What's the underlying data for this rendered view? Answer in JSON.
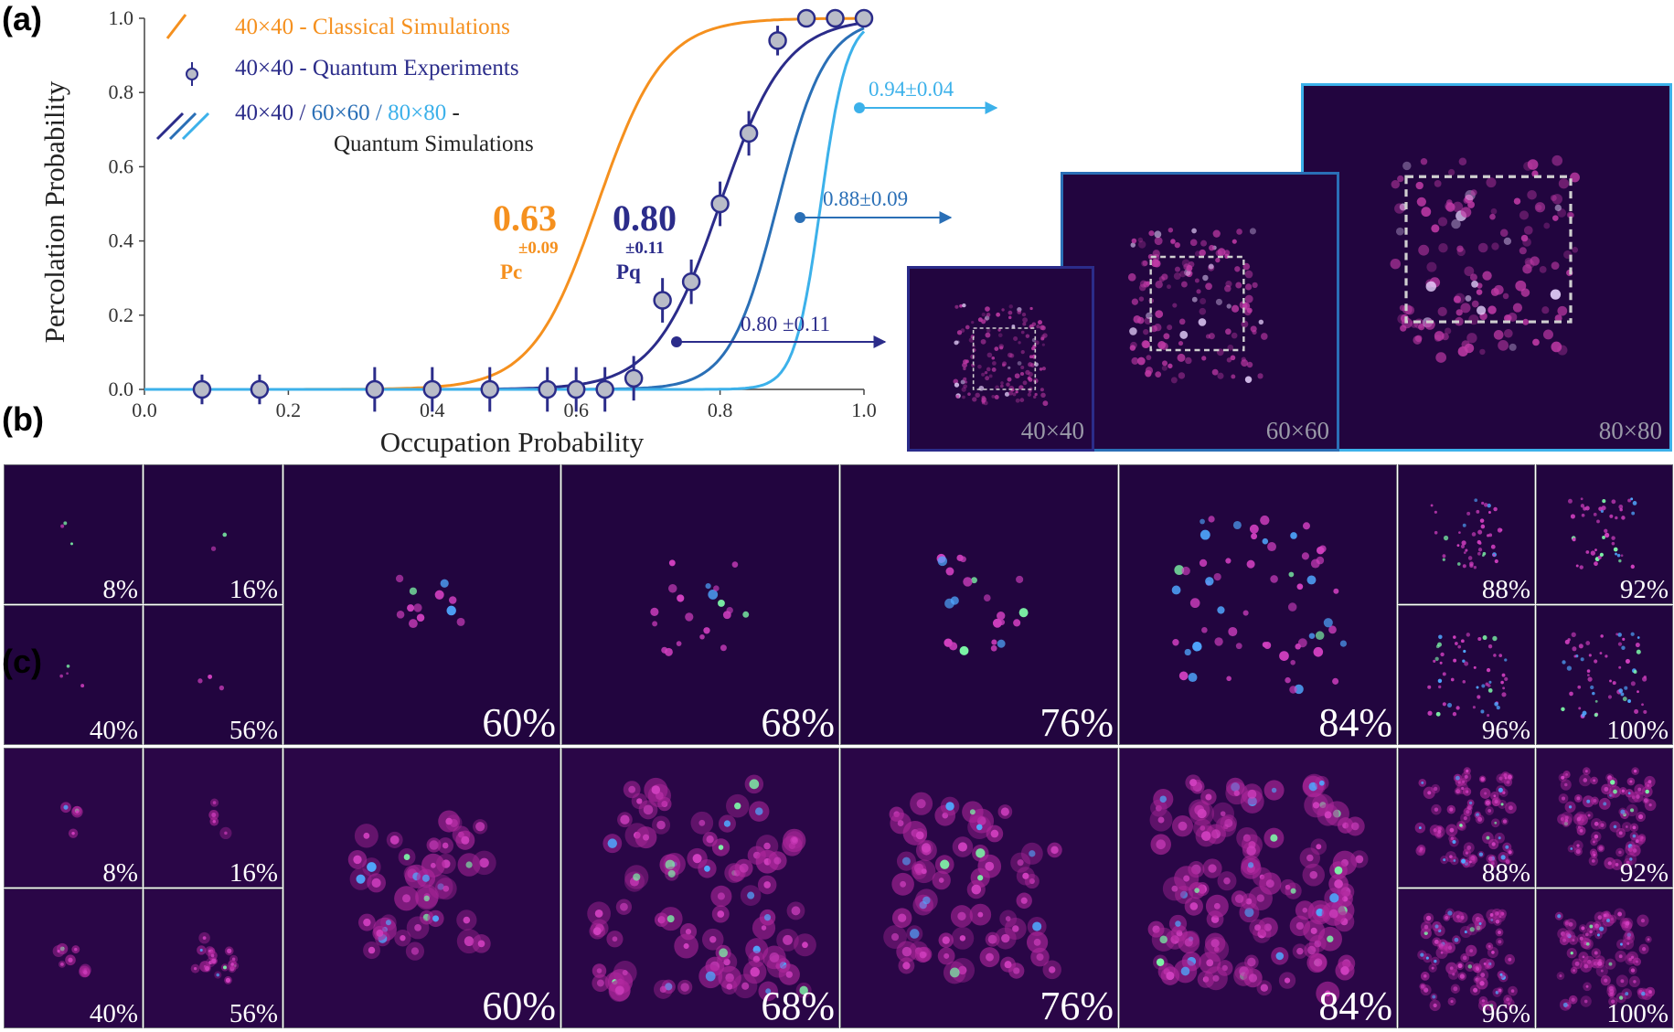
{
  "panels": {
    "a": "(a)",
    "b": "(b)",
    "c": "(c)"
  },
  "chart_data": {
    "type": "line",
    "xlabel": "Occupation Probability",
    "ylabel": "Percolation Probability",
    "xlim": [
      0.0,
      1.0
    ],
    "ylim": [
      0.0,
      1.0
    ],
    "xticks": [
      "0.0",
      "0.2",
      "0.4",
      "0.6",
      "0.8",
      "1.0"
    ],
    "yticks": [
      "0.0",
      "0.2",
      "0.4",
      "0.6",
      "0.8",
      "1.0"
    ],
    "legend": {
      "classical": "40×40 - Classical Simulations",
      "experiment": "40×40 - Quantum Experiments",
      "q40": "40×40",
      "sep1": " / ",
      "q60": "60×60",
      "sep2": " / ",
      "q80": "80×80",
      "dash": " -",
      "quantum_sim": "Quantum Simulations"
    },
    "series": [
      {
        "name": "40×40 - Classical Simulations",
        "color": "#f5901e",
        "center": 0.63,
        "steepness": 22
      },
      {
        "name": "40×40 - Quantum Simulations",
        "color": "#2b2c8a",
        "center": 0.8,
        "steepness": 22
      },
      {
        "name": "60×60 - Quantum Simulations",
        "color": "#2a6fb6",
        "center": 0.88,
        "steepness": 30
      },
      {
        "name": "80×80 - Quantum Simulations",
        "color": "#3cb1ea",
        "center": 0.94,
        "steepness": 55
      }
    ],
    "experiment_points": [
      {
        "x": 0.08,
        "y": 0.0,
        "err": 0.04
      },
      {
        "x": 0.16,
        "y": 0.0,
        "err": 0.04
      },
      {
        "x": 0.32,
        "y": 0.0,
        "err": 0.06
      },
      {
        "x": 0.4,
        "y": 0.0,
        "err": 0.06
      },
      {
        "x": 0.48,
        "y": 0.0,
        "err": 0.06
      },
      {
        "x": 0.56,
        "y": 0.0,
        "err": 0.06
      },
      {
        "x": 0.6,
        "y": 0.0,
        "err": 0.06
      },
      {
        "x": 0.64,
        "y": 0.0,
        "err": 0.06
      },
      {
        "x": 0.68,
        "y": 0.03,
        "err": 0.06
      },
      {
        "x": 0.72,
        "y": 0.24,
        "err": 0.06
      },
      {
        "x": 0.76,
        "y": 0.29,
        "err": 0.06
      },
      {
        "x": 0.8,
        "y": 0.5,
        "err": 0.06
      },
      {
        "x": 0.84,
        "y": 0.69,
        "err": 0.06
      },
      {
        "x": 0.88,
        "y": 0.94,
        "err": 0.04
      },
      {
        "x": 0.92,
        "y": 1.0,
        "err": 0.02
      },
      {
        "x": 0.96,
        "y": 1.0,
        "err": 0.02
      },
      {
        "x": 1.0,
        "y": 1.0,
        "err": 0.0
      }
    ],
    "annotations": {
      "pc_value": "0.63",
      "pc_err": "±0.09",
      "pc_label": "Pc",
      "pq_value": "0.80",
      "pq_err": "±0.11",
      "pq_label": "Pq",
      "arrow80": "0.80 ±0.11",
      "arrow88": "0.88±0.09",
      "arrow94": "0.94±0.04"
    }
  },
  "lattices": [
    {
      "label": "40×40",
      "color": "#2b2c8a"
    },
    {
      "label": "60×60",
      "color": "#2a6fb6"
    },
    {
      "label": "80×80",
      "color": "#3cb1ea"
    }
  ],
  "row_b": [
    {
      "pct": "8%",
      "spots": 3
    },
    {
      "pct": "16%",
      "spots": 2
    },
    {
      "pct": "40%",
      "spots": 4
    },
    {
      "pct": "56%",
      "spots": 3
    },
    {
      "pct": "60%",
      "spots": 12
    },
    {
      "pct": "68%",
      "spots": 20
    },
    {
      "pct": "76%",
      "spots": 22
    },
    {
      "pct": "84%",
      "spots": 60
    },
    {
      "pct": "88%",
      "spots": 45
    },
    {
      "pct": "92%",
      "spots": 45
    },
    {
      "pct": "96%",
      "spots": 55
    },
    {
      "pct": "100%",
      "spots": 60
    }
  ],
  "row_c": [
    {
      "pct": "8%",
      "spots": 4
    },
    {
      "pct": "16%",
      "spots": 4
    },
    {
      "pct": "40%",
      "spots": 8
    },
    {
      "pct": "56%",
      "spots": 18
    },
    {
      "pct": "60%",
      "spots": 40
    },
    {
      "pct": "68%",
      "spots": 80
    },
    {
      "pct": "76%",
      "spots": 60
    },
    {
      "pct": "84%",
      "spots": 110
    },
    {
      "pct": "88%",
      "spots": 70
    },
    {
      "pct": "92%",
      "spots": 70
    },
    {
      "pct": "96%",
      "spots": 70
    },
    {
      "pct": "100%",
      "spots": 70
    }
  ]
}
